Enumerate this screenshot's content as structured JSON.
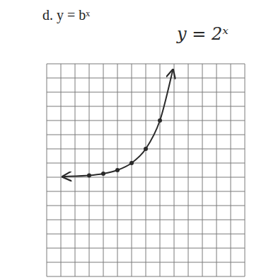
{
  "chart_data": {
    "type": "line",
    "title": "d.  y = bˣ",
    "annotation": "y = 2ˣ",
    "x": [
      -4.8,
      -3,
      -2,
      -1,
      0,
      1,
      2,
      2.9
    ],
    "values": [
      0.04,
      0.13,
      0.25,
      0.5,
      1,
      2,
      4,
      7.5
    ],
    "color": "#2a2a2a",
    "marker": "circle",
    "line_style": "solid",
    "xlim": [
      -6,
      8
    ],
    "xticks": [
      -6,
      -5,
      -4,
      -3,
      -2,
      -1,
      0,
      1,
      2,
      3,
      4,
      5,
      6,
      7,
      8
    ],
    "ylim": [
      -7,
      8
    ],
    "yticks": [
      -7,
      -6,
      -5,
      -4,
      -3,
      -2,
      -1,
      0,
      1,
      2,
      3,
      4,
      5,
      6,
      7,
      8
    ],
    "grid": true,
    "tick_labels": false
  }
}
